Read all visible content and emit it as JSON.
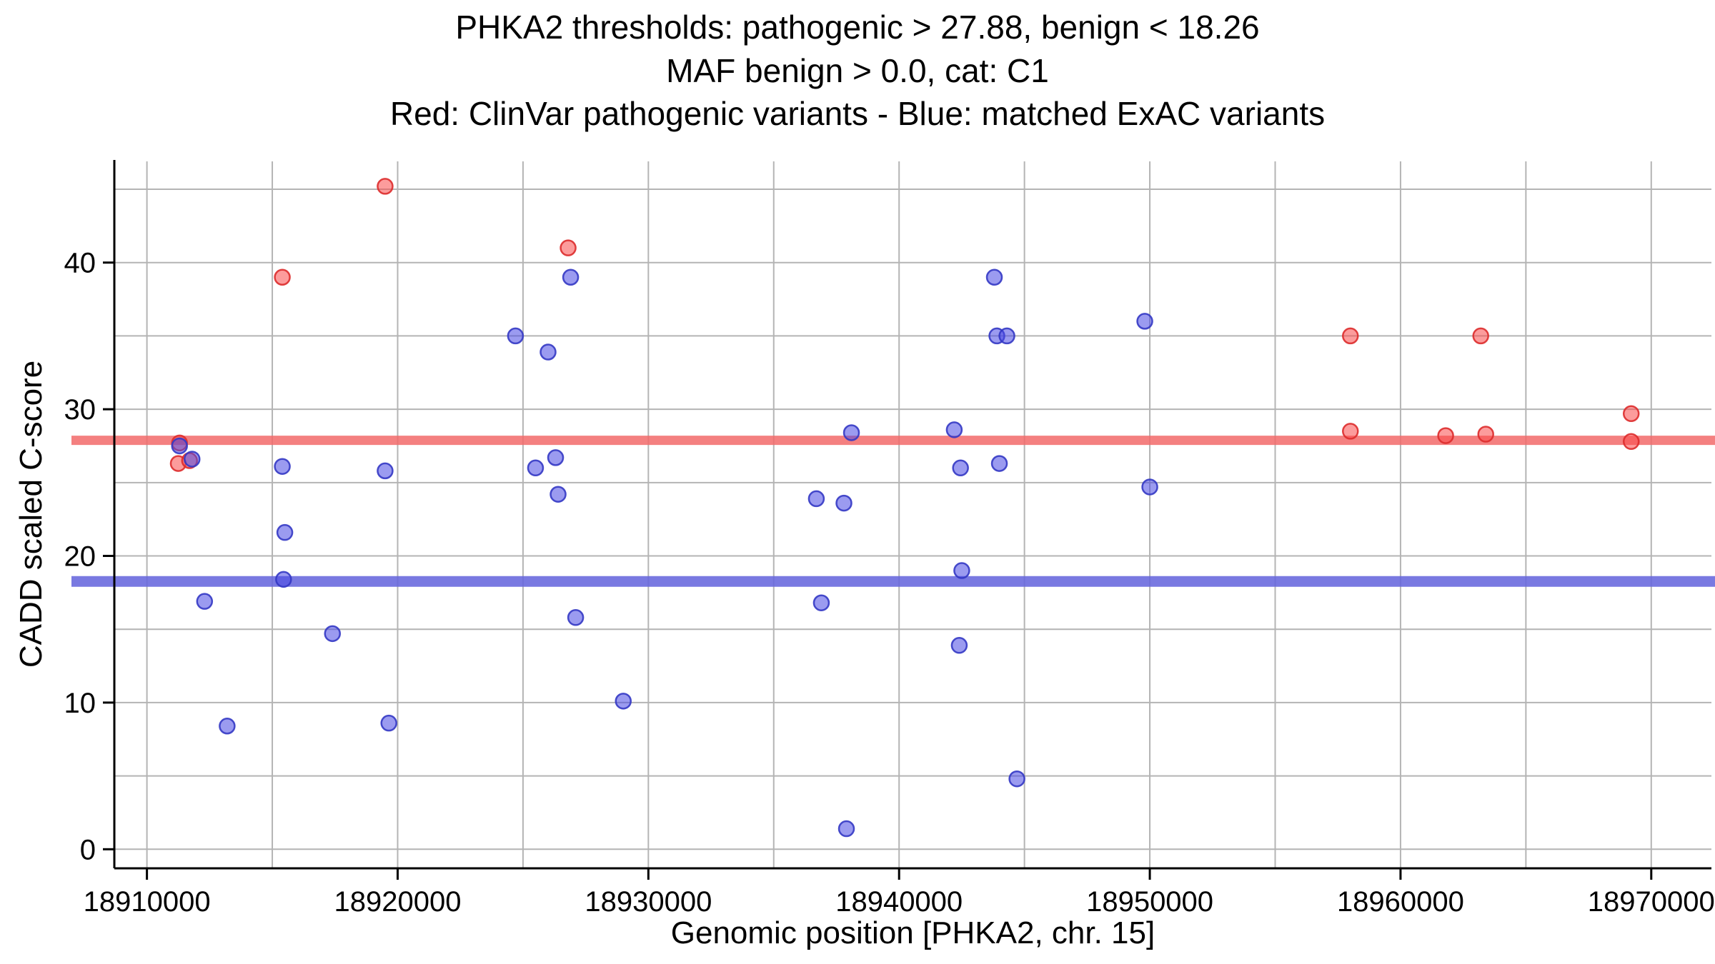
{
  "chart_data": {
    "type": "scatter",
    "title_lines": [
      "PHKA2 thresholds: pathogenic > 27.88, benign < 18.26",
      "MAF benign > 0.0, cat: C1",
      "Red: ClinVar pathogenic variants - Blue: matched ExAC variants"
    ],
    "xlabel": "Genomic position [PHKA2, chr. 15]",
    "ylabel": "CADD scaled C-score",
    "x_ticks": [
      18910000,
      18920000,
      18930000,
      18940000,
      18950000,
      18960000,
      18970000
    ],
    "y_ticks": [
      0,
      10,
      20,
      30,
      40
    ],
    "x_minor_step": 5000,
    "y_minor_step": 5,
    "xlim": [
      18908700,
      18972400
    ],
    "ylim": [
      -1.3,
      46.9
    ],
    "grid_color": "#b4b4b4",
    "axis_color": "#000000",
    "thresholds": {
      "pathogenic": {
        "value": 27.88,
        "color": "#f26a6a",
        "label": "pathogenic > 27.88"
      },
      "benign": {
        "value": 18.26,
        "color": "#6767dd",
        "label": "benign < 18.26"
      }
    },
    "series": [
      {
        "name": "ClinVar pathogenic variants",
        "fill": "#fa4b4b",
        "stroke": "#dd2c2c",
        "points": [
          [
            18911300,
            27.7
          ],
          [
            18911250,
            26.3
          ],
          [
            18911700,
            26.5
          ],
          [
            18915400,
            39.0
          ],
          [
            18919500,
            45.2
          ],
          [
            18926800,
            41.0
          ],
          [
            18958000,
            35.0
          ],
          [
            18958000,
            28.5
          ],
          [
            18961800,
            28.2
          ],
          [
            18963200,
            35.0
          ],
          [
            18963400,
            28.3
          ],
          [
            18969200,
            29.7
          ],
          [
            18969200,
            27.8
          ]
        ]
      },
      {
        "name": "matched ExAC variants",
        "fill": "#4949e4",
        "stroke": "#3438c4",
        "points": [
          [
            18911300,
            27.5
          ],
          [
            18911800,
            26.6
          ],
          [
            18912300,
            16.9
          ],
          [
            18913200,
            8.4
          ],
          [
            18915400,
            26.1
          ],
          [
            18915500,
            21.6
          ],
          [
            18915450,
            18.4
          ],
          [
            18917400,
            14.7
          ],
          [
            18919500,
            25.8
          ],
          [
            18919650,
            8.6
          ],
          [
            18924700,
            35.0
          ],
          [
            18925500,
            26.0
          ],
          [
            18926000,
            33.9
          ],
          [
            18926300,
            26.7
          ],
          [
            18926400,
            24.2
          ],
          [
            18926900,
            39.0
          ],
          [
            18927100,
            15.8
          ],
          [
            18929000,
            10.1
          ],
          [
            18936700,
            23.9
          ],
          [
            18936900,
            16.8
          ],
          [
            18937800,
            23.6
          ],
          [
            18938100,
            28.4
          ],
          [
            18937900,
            1.4
          ],
          [
            18942200,
            28.6
          ],
          [
            18942450,
            26.0
          ],
          [
            18942500,
            19.0
          ],
          [
            18942400,
            13.9
          ],
          [
            18943800,
            39.0
          ],
          [
            18943900,
            35.0
          ],
          [
            18944300,
            35.0
          ],
          [
            18944000,
            26.3
          ],
          [
            18944700,
            4.8
          ],
          [
            18949800,
            36.0
          ],
          [
            18950000,
            24.7
          ]
        ]
      }
    ]
  }
}
